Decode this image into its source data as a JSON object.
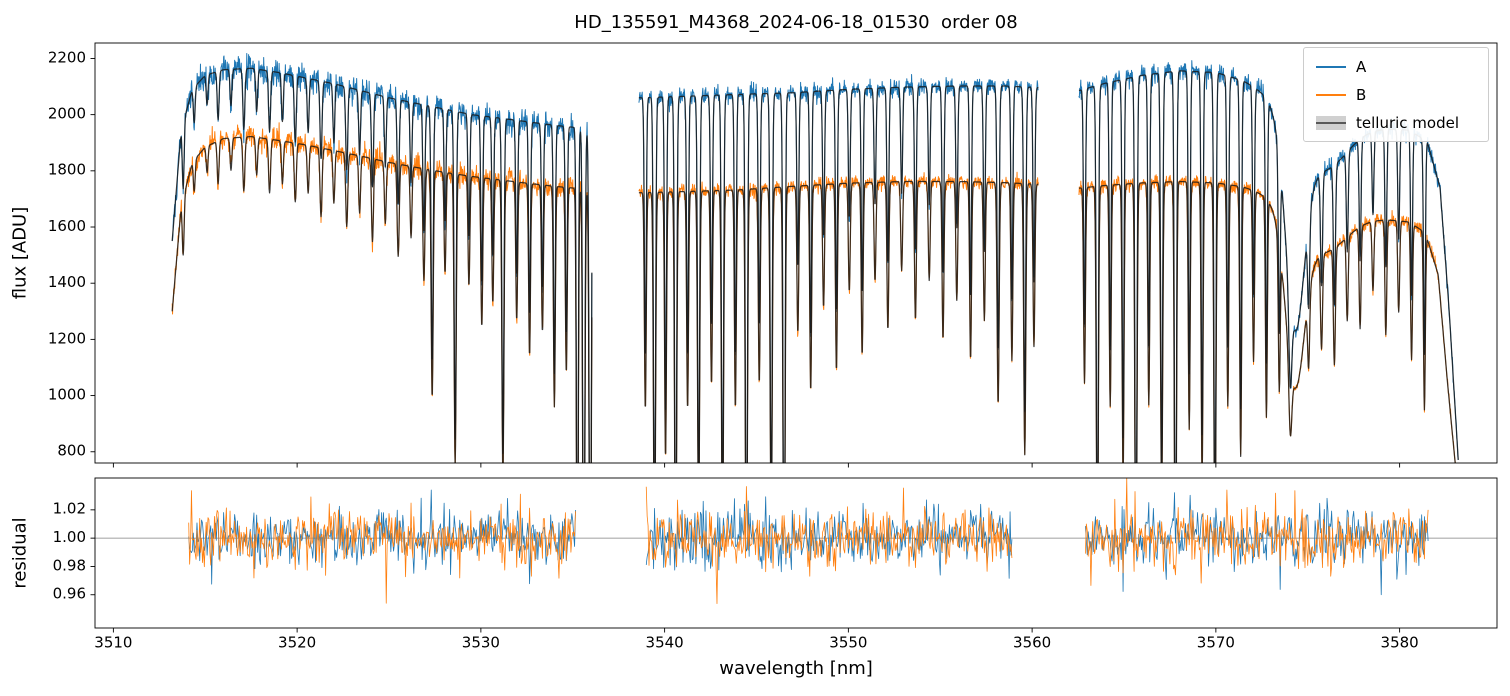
{
  "figure": {
    "title": "HD_135591_M4368_2024-06-18_01530  order 08"
  },
  "chart_data": {
    "type": "line",
    "title": "HD_135591_M4368_2024-06-18_01530  order 08",
    "xlabel": "wavelength [nm]",
    "xlim": [
      3509.0,
      3585.3
    ],
    "xticks": [
      3510,
      3520,
      3530,
      3540,
      3550,
      3560,
      3570,
      3580
    ],
    "xtick_labels": [
      "3510",
      "3520",
      "3530",
      "3540",
      "3550",
      "3560",
      "3570",
      "3580"
    ],
    "panels": [
      {
        "name": "flux",
        "ylabel": "flux [ADU]",
        "ylim": [
          760,
          2255
        ],
        "yticks": [
          800,
          1000,
          1200,
          1400,
          1600,
          1800,
          2000,
          2200
        ],
        "ytick_labels": [
          "800",
          "1000",
          "1200",
          "1400",
          "1600",
          "1800",
          "2000",
          "2200"
        ]
      },
      {
        "name": "residual",
        "ylabel": "residual",
        "ylim": [
          0.9365,
          1.0425
        ],
        "yticks": [
          0.96,
          0.98,
          1.0,
          1.02
        ],
        "ytick_labels": [
          "0.96",
          "0.98",
          "1.00",
          "1.02"
        ],
        "refline": 1.0
      }
    ],
    "legend": [
      {
        "label": "A",
        "color": "#1f77b4"
      },
      {
        "label": "B",
        "color": "#ff7f0e"
      },
      {
        "label": "telluric model",
        "color": "#595959",
        "band": "#d0d0d0"
      }
    ],
    "colors": {
      "A": "#1f77b4",
      "B": "#ff7f0e",
      "telluric": "rgba(25,25,25,0.85)",
      "refline": "#808080",
      "spine": "#000000"
    },
    "segments": [
      [
        3513.2,
        3536.05
      ],
      [
        3538.6,
        3560.35
      ],
      [
        3562.55,
        3583.2
      ]
    ],
    "residual_segments": [
      [
        3514.1,
        3535.2
      ],
      [
        3539.0,
        3558.95
      ],
      [
        3562.9,
        3581.6
      ]
    ],
    "flux_noise_sigma": [
      0.012,
      0.0075,
      0.0085
    ],
    "residual_noise_sigma": 0.0095,
    "continuum_A": [
      [
        3513.2,
        1550
      ],
      [
        3513.7,
        1950
      ],
      [
        3514.3,
        2090
      ],
      [
        3515.0,
        2140
      ],
      [
        3516.0,
        2160
      ],
      [
        3517.5,
        2165
      ],
      [
        3519.0,
        2150
      ],
      [
        3520.5,
        2130
      ],
      [
        3522.0,
        2110
      ],
      [
        3523.5,
        2085
      ],
      [
        3525.0,
        2060
      ],
      [
        3526.5,
        2040
      ],
      [
        3528.0,
        2020
      ],
      [
        3529.5,
        2000
      ],
      [
        3531.0,
        1988
      ],
      [
        3532.5,
        1975
      ],
      [
        3534.0,
        1962
      ],
      [
        3536.1,
        1948
      ],
      [
        3538.6,
        2060
      ],
      [
        3541.0,
        2065
      ],
      [
        3544.0,
        2072
      ],
      [
        3547.0,
        2078
      ],
      [
        3550.0,
        2090
      ],
      [
        3553.0,
        2098
      ],
      [
        3556.0,
        2102
      ],
      [
        3558.5,
        2102
      ],
      [
        3560.4,
        2096
      ],
      [
        3562.5,
        2085
      ],
      [
        3564.0,
        2112
      ],
      [
        3566.0,
        2140
      ],
      [
        3568.0,
        2156
      ],
      [
        3570.0,
        2150
      ],
      [
        3571.5,
        2122
      ],
      [
        3573.0,
        2080
      ],
      [
        3575.0,
        2015
      ],
      [
        3577.0,
        1975
      ],
      [
        3579.0,
        1955
      ],
      [
        3580.5,
        1945
      ],
      [
        3581.5,
        1905
      ],
      [
        3582.2,
        1740
      ],
      [
        3582.7,
        1300
      ],
      [
        3583.2,
        760
      ]
    ],
    "continuum_B": [
      [
        3513.2,
        1300
      ],
      [
        3513.7,
        1680
      ],
      [
        3514.3,
        1830
      ],
      [
        3515.0,
        1885
      ],
      [
        3516.0,
        1915
      ],
      [
        3517.5,
        1922
      ],
      [
        3519.0,
        1908
      ],
      [
        3520.5,
        1892
      ],
      [
        3522.0,
        1872
      ],
      [
        3523.5,
        1852
      ],
      [
        3525.0,
        1830
      ],
      [
        3526.5,
        1812
      ],
      [
        3528.0,
        1795
      ],
      [
        3529.5,
        1780
      ],
      [
        3531.0,
        1768
      ],
      [
        3532.5,
        1756
      ],
      [
        3534.0,
        1745
      ],
      [
        3536.1,
        1732
      ],
      [
        3538.6,
        1722
      ],
      [
        3541.0,
        1726
      ],
      [
        3544.0,
        1732
      ],
      [
        3547.0,
        1745
      ],
      [
        3550.0,
        1756
      ],
      [
        3553.0,
        1762
      ],
      [
        3556.0,
        1762
      ],
      [
        3558.5,
        1758
      ],
      [
        3560.4,
        1752
      ],
      [
        3562.5,
        1738
      ],
      [
        3564.0,
        1748
      ],
      [
        3566.0,
        1757
      ],
      [
        3568.0,
        1762
      ],
      [
        3570.0,
        1757
      ],
      [
        3571.5,
        1744
      ],
      [
        3573.0,
        1722
      ],
      [
        3575.0,
        1688
      ],
      [
        3577.0,
        1655
      ],
      [
        3579.0,
        1632
      ],
      [
        3580.5,
        1618
      ],
      [
        3581.4,
        1580
      ],
      [
        3582.1,
        1430
      ],
      [
        3582.6,
        1050
      ],
      [
        3583.2,
        640
      ]
    ],
    "telluric_lines": [
      [
        3513.8,
        0.12,
        0.05
      ],
      [
        3514.4,
        0.06,
        0.05
      ],
      [
        3515.1,
        0.05,
        0.05
      ],
      [
        3515.7,
        0.08,
        0.05
      ],
      [
        3516.4,
        0.06,
        0.05
      ],
      [
        3517.1,
        0.1,
        0.055
      ],
      [
        3517.8,
        0.07,
        0.05
      ],
      [
        3518.5,
        0.1,
        0.055
      ],
      [
        3519.2,
        0.08,
        0.05
      ],
      [
        3519.9,
        0.11,
        0.055
      ],
      [
        3520.6,
        0.09,
        0.05
      ],
      [
        3521.3,
        0.13,
        0.055
      ],
      [
        3522.0,
        0.1,
        0.05
      ],
      [
        3522.7,
        0.14,
        0.055
      ],
      [
        3523.4,
        0.11,
        0.05
      ],
      [
        3524.1,
        0.16,
        0.055
      ],
      [
        3524.8,
        0.12,
        0.05
      ],
      [
        3525.5,
        0.18,
        0.055
      ],
      [
        3526.2,
        0.14,
        0.05
      ],
      [
        3526.9,
        0.22,
        0.055
      ],
      [
        3527.35,
        0.45,
        0.055
      ],
      [
        3528.05,
        0.2,
        0.05
      ],
      [
        3528.6,
        0.58,
        0.055
      ],
      [
        3529.35,
        0.22,
        0.05
      ],
      [
        3530.05,
        0.3,
        0.05
      ],
      [
        3530.65,
        0.25,
        0.05
      ],
      [
        3531.2,
        0.6,
        0.055
      ],
      [
        3531.95,
        0.28,
        0.05
      ],
      [
        3532.65,
        0.35,
        0.05
      ],
      [
        3533.35,
        0.3,
        0.05
      ],
      [
        3534.0,
        0.45,
        0.05
      ],
      [
        3534.65,
        0.38,
        0.05
      ],
      [
        3535.25,
        0.9,
        0.05
      ],
      [
        3535.6,
        1.0,
        0.055
      ],
      [
        3535.95,
        1.0,
        0.055
      ],
      [
        3538.95,
        0.45,
        0.05
      ],
      [
        3539.45,
        0.8,
        0.055
      ],
      [
        3540.05,
        0.55,
        0.05
      ],
      [
        3540.6,
        0.85,
        0.055
      ],
      [
        3541.25,
        0.45,
        0.05
      ],
      [
        3541.85,
        0.7,
        0.055
      ],
      [
        3542.55,
        0.4,
        0.05
      ],
      [
        3543.15,
        0.75,
        0.055
      ],
      [
        3543.85,
        0.45,
        0.05
      ],
      [
        3544.45,
        0.88,
        0.055
      ],
      [
        3545.15,
        0.4,
        0.05
      ],
      [
        3545.8,
        0.72,
        0.055
      ],
      [
        3546.5,
        0.92,
        0.055
      ],
      [
        3547.25,
        0.3,
        0.05
      ],
      [
        3547.95,
        0.42,
        0.05
      ],
      [
        3548.65,
        0.25,
        0.05
      ],
      [
        3549.35,
        0.38,
        0.05
      ],
      [
        3550.05,
        0.22,
        0.05
      ],
      [
        3550.75,
        0.35,
        0.05
      ],
      [
        3551.45,
        0.2,
        0.05
      ],
      [
        3552.15,
        0.3,
        0.05
      ],
      [
        3552.9,
        0.18,
        0.05
      ],
      [
        3553.65,
        0.28,
        0.05
      ],
      [
        3554.4,
        0.2,
        0.05
      ],
      [
        3555.15,
        0.32,
        0.05
      ],
      [
        3555.9,
        0.24,
        0.05
      ],
      [
        3556.65,
        0.36,
        0.05
      ],
      [
        3557.4,
        0.28,
        0.05
      ],
      [
        3558.15,
        0.45,
        0.055
      ],
      [
        3558.9,
        0.36,
        0.05
      ],
      [
        3559.6,
        0.55,
        0.055
      ],
      [
        3560.1,
        0.33,
        0.05
      ],
      [
        3562.85,
        0.4,
        0.05
      ],
      [
        3563.55,
        0.8,
        0.055
      ],
      [
        3564.25,
        0.45,
        0.05
      ],
      [
        3564.95,
        0.6,
        0.05
      ],
      [
        3565.65,
        0.88,
        0.055
      ],
      [
        3566.35,
        0.45,
        0.05
      ],
      [
        3567.05,
        0.65,
        0.055
      ],
      [
        3567.8,
        0.92,
        0.055
      ],
      [
        3568.55,
        0.5,
        0.05
      ],
      [
        3569.25,
        0.6,
        0.05
      ],
      [
        3569.95,
        0.78,
        0.055
      ],
      [
        3570.65,
        0.45,
        0.05
      ],
      [
        3571.35,
        0.55,
        0.05
      ],
      [
        3572.05,
        0.35,
        0.05
      ],
      [
        3572.75,
        0.45,
        0.05
      ],
      [
        3573.45,
        0.3,
        0.05
      ],
      [
        3574.3,
        0.33,
        0.5
      ],
      [
        3575.6,
        0.1,
        1.4
      ],
      [
        3574.05,
        0.15,
        0.08
      ],
      [
        3575.05,
        0.15,
        0.055
      ],
      [
        3575.75,
        0.2,
        0.055
      ],
      [
        3576.45,
        0.25,
        0.055
      ],
      [
        3577.15,
        0.18,
        0.05
      ],
      [
        3577.85,
        0.22,
        0.05
      ],
      [
        3578.55,
        0.15,
        0.05
      ],
      [
        3579.25,
        0.25,
        0.05
      ],
      [
        3579.95,
        0.2,
        0.05
      ],
      [
        3580.65,
        0.3,
        0.05
      ],
      [
        3581.35,
        0.4,
        0.05
      ]
    ]
  }
}
